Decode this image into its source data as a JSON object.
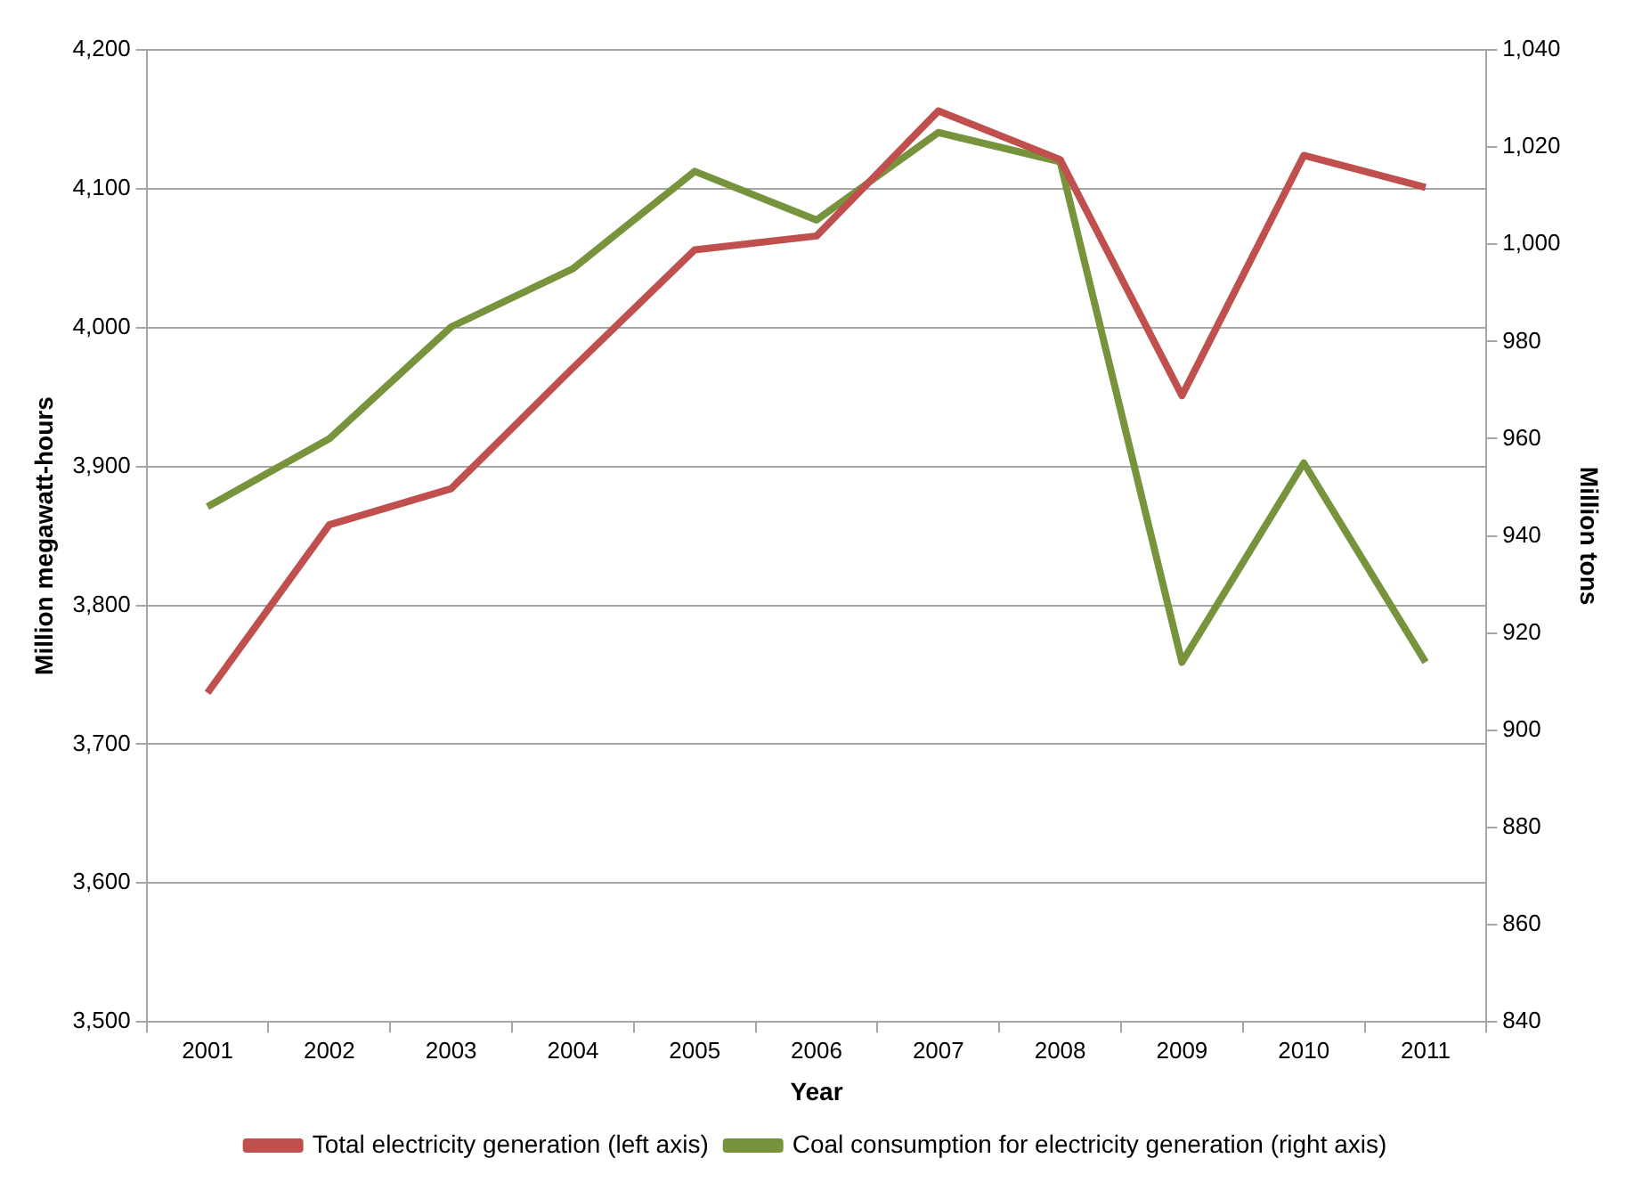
{
  "chart_data": {
    "type": "line",
    "xlabel": "Year",
    "ylabel": "Million megawatt-hours",
    "y2label": "Million tons",
    "categories": [
      "2001",
      "2002",
      "2003",
      "2004",
      "2005",
      "2006",
      "2007",
      "2008",
      "2009",
      "2010",
      "2011"
    ],
    "series": [
      {
        "name": "Total electricity generation (left axis)",
        "color": "#c0504d",
        "values": [
          3737,
          3858,
          3884,
          3971,
          4056,
          4066,
          4156,
          4121,
          3951,
          4124,
          4101
        ]
      },
      {
        "name": "Coal consumption for electricity generation (right axis)",
        "color": "#77933c",
        "axis": "y2",
        "values": [
          946,
          960,
          983,
          995,
          1015,
          1005,
          1023,
          1017,
          914,
          955,
          914
        ]
      }
    ],
    "ylim": [
      3500,
      4200
    ],
    "yticks": [
      {
        "value": 3500,
        "label": "3,500"
      },
      {
        "value": 3600,
        "label": "3,600"
      },
      {
        "value": 3700,
        "label": "3,700"
      },
      {
        "value": 3800,
        "label": "3,800"
      },
      {
        "value": 3900,
        "label": "3,900"
      },
      {
        "value": 4000,
        "label": "4,000"
      },
      {
        "value": 4100,
        "label": "4,100"
      },
      {
        "value": 4200,
        "label": "4,200"
      }
    ],
    "y2lim": [
      840,
      1040
    ],
    "y2ticks": [
      840,
      860,
      880,
      900,
      920,
      940,
      960,
      980,
      {
        "value": 1000,
        "label": "1,000"
      },
      {
        "value": 1020,
        "label": "1,020"
      },
      {
        "value": 1040,
        "label": "1,040"
      }
    ],
    "grid": "y",
    "legend": "bottom",
    "marker": "none",
    "line_style": "solid"
  }
}
